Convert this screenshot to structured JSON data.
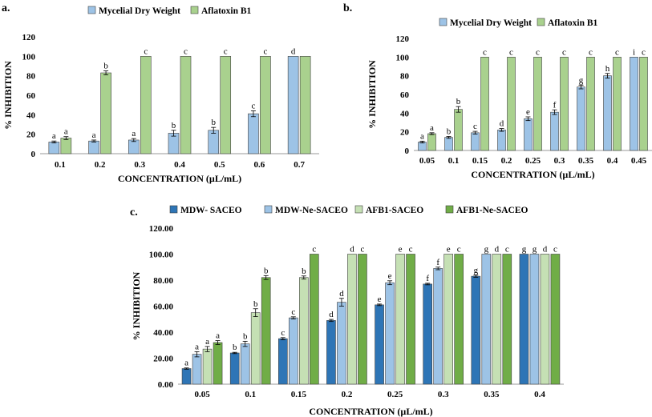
{
  "colors": {
    "dry_weight_blue": "#9dc3e6",
    "aflatoxin_green": "#a9d18e",
    "mdw_saceo": "#2e75b6",
    "mdw_ne_saceo": "#9dc3e6",
    "afb1_saceo": "#c5e0b4",
    "afb1_ne_saceo": "#70ad47",
    "axis": "#999999",
    "outline": "#404040"
  },
  "chart_data": [
    {
      "id": "a",
      "panel_label": "a.",
      "type": "bar",
      "xlabel": "CONCENTRATION (µL/mL)",
      "ylabel": "% INHIBITION",
      "ylim": [
        0,
        120
      ],
      "yticks": [
        "0",
        "20",
        "40",
        "60",
        "80",
        "100",
        "120"
      ],
      "categories": [
        "0.1",
        "0.2",
        "0.3",
        "0.4",
        "0.5",
        "0.6",
        "0.7"
      ],
      "legend_position": "top-center",
      "series": [
        {
          "name": "Mycelial Dry Weight",
          "color_key": "dry_weight_blue",
          "values": [
            12,
            13,
            14,
            21,
            24,
            41,
            100
          ],
          "errors": [
            1,
            1,
            1.5,
            3,
            3,
            3,
            0
          ],
          "labels": [
            "a",
            "a",
            "a",
            "b",
            "b",
            "c",
            "d"
          ]
        },
        {
          "name": "Aflatoxin B1",
          "color_key": "aflatoxin_green",
          "values": [
            16,
            83,
            100,
            100,
            100,
            100,
            100
          ],
          "errors": [
            1.5,
            2,
            0,
            0,
            0,
            0,
            0
          ],
          "labels": [
            "a",
            "b",
            "c",
            "c",
            "c",
            "c",
            ""
          ]
        }
      ]
    },
    {
      "id": "b",
      "panel_label": "b.",
      "type": "bar",
      "xlabel": "CONCENTRATION (µL/mL)",
      "ylabel": "% INHIBITION",
      "ylim": [
        0,
        120
      ],
      "yticks": [
        "0",
        "20",
        "40",
        "60",
        "80",
        "100",
        "120"
      ],
      "categories": [
        "0.05",
        "0.1",
        "0.15",
        "0.2",
        "0.25",
        "0.3",
        "0.35",
        "0.4",
        "0.45"
      ],
      "legend_position": "top-center",
      "series": [
        {
          "name": "Mycelial Dry Weight",
          "color_key": "dry_weight_blue",
          "values": [
            9,
            14,
            19,
            22,
            34,
            41,
            68,
            80,
            100
          ],
          "errors": [
            1,
            1,
            1.5,
            1.5,
            2,
            2.5,
            2,
            2.5,
            0
          ],
          "labels": [
            "a",
            "b",
            "c",
            "d",
            "e",
            "f",
            "g",
            "h",
            "i"
          ]
        },
        {
          "name": "Aflatoxin B1",
          "color_key": "aflatoxin_green",
          "values": [
            18,
            44,
            100,
            100,
            100,
            100,
            100,
            100,
            100
          ],
          "errors": [
            1,
            3,
            0,
            0,
            0,
            0,
            0,
            0,
            0
          ],
          "labels": [
            "a",
            "b",
            "c",
            "c",
            "c",
            "c",
            "c",
            "c",
            "c"
          ]
        }
      ]
    },
    {
      "id": "c",
      "panel_label": "c.",
      "type": "bar",
      "xlabel": "CONCENTRATION (µL/mL)",
      "ylabel": "% INHIBITION",
      "ylim": [
        0,
        120
      ],
      "yticks": [
        "0.00",
        "20.00",
        "40.00",
        "60.00",
        "80.00",
        "100.00",
        "120.00"
      ],
      "categories": [
        "0.05",
        "0.1",
        "0.15",
        "0.2",
        "0.25",
        "0.3",
        "0.35",
        "0.4"
      ],
      "legend_position": "top-center",
      "series": [
        {
          "name": "MDW- SACEO",
          "color_key": "mdw_saceo",
          "values": [
            12,
            24,
            35,
            49,
            61,
            77,
            83,
            100
          ],
          "errors": [
            0.5,
            0.5,
            0.8,
            0.8,
            0.6,
            0.6,
            0.8,
            0
          ],
          "labels": [
            "a",
            "b",
            "c",
            "d",
            "e",
            "f",
            "g",
            "g"
          ]
        },
        {
          "name": "MDW-Ne-SACEO",
          "color_key": "mdw_ne_saceo",
          "values": [
            23,
            31,
            51,
            63,
            78,
            89,
            100,
            100
          ],
          "errors": [
            2,
            2,
            0.8,
            3,
            1.5,
            1,
            0,
            0
          ],
          "labels": [
            "a",
            "b",
            "c",
            "d",
            "e",
            "f",
            "g",
            "g"
          ]
        },
        {
          "name": "AFB1-SACEO",
          "color_key": "afb1_saceo",
          "values": [
            27,
            55,
            82,
            100,
            100,
            100,
            100,
            100
          ],
          "errors": [
            2,
            3,
            1.2,
            0,
            0,
            0,
            0,
            0
          ],
          "labels": [
            "a",
            "b",
            "b",
            "d",
            "e",
            "e",
            "d",
            "d"
          ]
        },
        {
          "name": "AFB1-Ne-SACEO",
          "color_key": "afb1_ne_saceo",
          "values": [
            32,
            82,
            100,
            100,
            100,
            100,
            100,
            100
          ],
          "errors": [
            1.5,
            1.5,
            0,
            0,
            0,
            0,
            0,
            0
          ],
          "labels": [
            "a",
            "b",
            "c",
            "c",
            "c",
            "c",
            "c",
            "c"
          ]
        }
      ]
    }
  ]
}
